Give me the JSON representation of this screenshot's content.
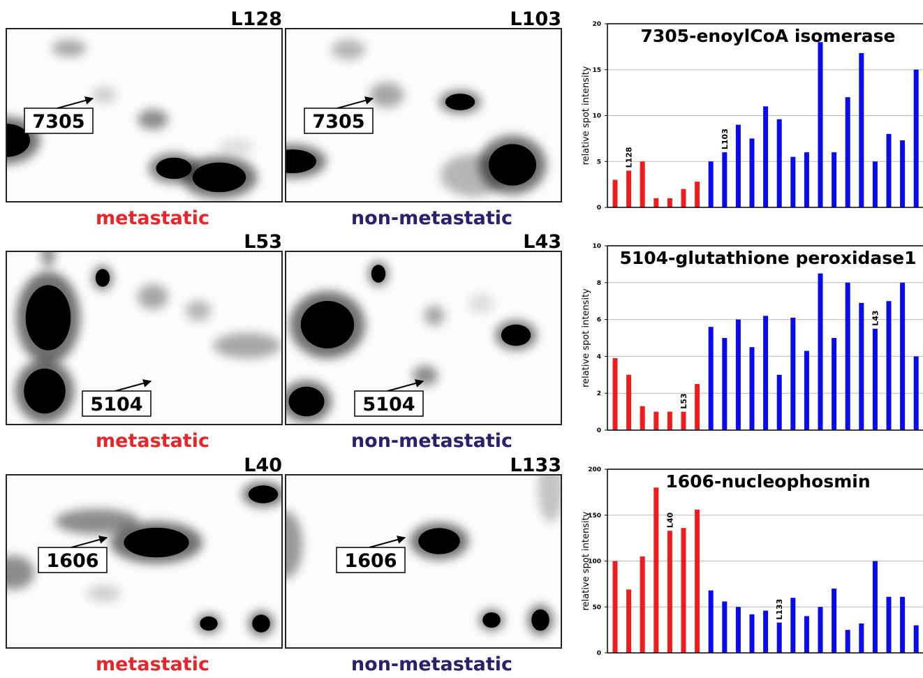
{
  "gels": [
    {
      "sample": "L128",
      "spot": "7305",
      "group": "metastatic"
    },
    {
      "sample": "L103",
      "spot": "7305",
      "group": "non-metastatic"
    },
    {
      "sample": "L53",
      "spot": "5104",
      "group": "metastatic"
    },
    {
      "sample": "L43",
      "spot": "5104",
      "group": "non-metastatic"
    },
    {
      "sample": "L40",
      "spot": "1606",
      "group": "metastatic"
    },
    {
      "sample": "L133",
      "spot": "1606",
      "group": "non-metastatic"
    }
  ],
  "group_colors": {
    "metastatic": "#e8262a",
    "non-metastatic": "#2b2070"
  },
  "chart_data": [
    {
      "type": "bar",
      "title": "7305-enoylCoA isomerase",
      "ylabel": "relative spot intensity",
      "categories": [
        null,
        null,
        null,
        null,
        null,
        null,
        null,
        null,
        null,
        null,
        null,
        null,
        null,
        null,
        null,
        null,
        null,
        null,
        null,
        null,
        null,
        null,
        null
      ],
      "values": [
        3,
        4,
        5,
        1,
        1,
        2,
        2.8,
        5,
        6,
        9,
        7.5,
        11,
        9.6,
        5.5,
        6,
        18,
        6,
        12,
        16.8,
        5,
        8,
        7.3,
        15
      ],
      "colors": [
        "#ee1c1c",
        "#ee1c1c",
        "#ee1c1c",
        "#ee1c1c",
        "#ee1c1c",
        "#ee1c1c",
        "#ee1c1c",
        "#0a0af0",
        "#0a0af0",
        "#0a0af0",
        "#0a0af0",
        "#0a0af0",
        "#0a0af0",
        "#0a0af0",
        "#0a0af0",
        "#0a0af0",
        "#0a0af0",
        "#0a0af0",
        "#0a0af0",
        "#0a0af0",
        "#0a0af0",
        "#0a0af0",
        "#0a0af0"
      ],
      "annotations": [
        {
          "text": "L128",
          "at": 1
        },
        {
          "text": "L103",
          "at": 8
        }
      ],
      "ylim": [
        0,
        20
      ],
      "yticks": [
        0,
        5,
        10,
        15,
        20
      ],
      "grid": true
    },
    {
      "type": "bar",
      "title": "5104-glutathione peroxidase1",
      "ylabel": "relative spot intensity",
      "categories": [
        null,
        null,
        null,
        null,
        null,
        null,
        null,
        null,
        null,
        null,
        null,
        null,
        null,
        null,
        null,
        null,
        null,
        null,
        null,
        null,
        null,
        null,
        null
      ],
      "values": [
        3.9,
        3,
        1.3,
        1,
        1,
        1,
        2.5,
        5.6,
        5,
        6,
        4.5,
        6.2,
        3,
        6.1,
        4.3,
        8.5,
        5,
        8,
        6.9,
        5.5,
        7,
        8,
        4
      ],
      "colors": [
        "#ee1c1c",
        "#ee1c1c",
        "#ee1c1c",
        "#ee1c1c",
        "#ee1c1c",
        "#ee1c1c",
        "#ee1c1c",
        "#0a0af0",
        "#0a0af0",
        "#0a0af0",
        "#0a0af0",
        "#0a0af0",
        "#0a0af0",
        "#0a0af0",
        "#0a0af0",
        "#0a0af0",
        "#0a0af0",
        "#0a0af0",
        "#0a0af0",
        "#0a0af0",
        "#0a0af0",
        "#0a0af0",
        "#0a0af0"
      ],
      "annotations": [
        {
          "text": "L53",
          "at": 5
        },
        {
          "text": "L43",
          "at": 19
        }
      ],
      "ylim": [
        0,
        10
      ],
      "yticks": [
        0,
        2,
        4,
        6,
        8,
        10
      ],
      "grid": true
    },
    {
      "type": "bar",
      "title": "1606-nucleophosmin",
      "ylabel": "relative spot intensity",
      "categories": [
        null,
        null,
        null,
        null,
        null,
        null,
        null,
        null,
        null,
        null,
        null,
        null,
        null,
        null,
        null,
        null,
        null,
        null,
        null,
        null,
        null,
        null,
        null
      ],
      "values": [
        100,
        69,
        105,
        180,
        133,
        136,
        156,
        68,
        56,
        50,
        42,
        46,
        33,
        60,
        40,
        50,
        70,
        25,
        32,
        100,
        61,
        61,
        30
      ],
      "colors": [
        "#ee1c1c",
        "#ee1c1c",
        "#ee1c1c",
        "#ee1c1c",
        "#ee1c1c",
        "#ee1c1c",
        "#ee1c1c",
        "#0a0af0",
        "#0a0af0",
        "#0a0af0",
        "#0a0af0",
        "#0a0af0",
        "#0a0af0",
        "#0a0af0",
        "#0a0af0",
        "#0a0af0",
        "#0a0af0",
        "#0a0af0",
        "#0a0af0",
        "#0a0af0",
        "#0a0af0",
        "#0a0af0",
        "#0a0af0"
      ],
      "annotations": [
        {
          "text": "L40",
          "at": 4
        },
        {
          "text": "L133",
          "at": 12
        }
      ],
      "ylim": [
        0,
        200
      ],
      "yticks": [
        0,
        50,
        100,
        150,
        200
      ],
      "grid": true
    }
  ]
}
